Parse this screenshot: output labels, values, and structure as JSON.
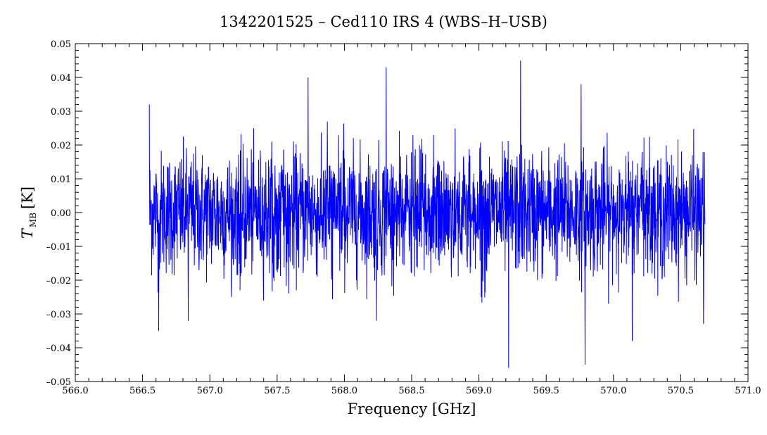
{
  "chart_data": {
    "type": "line",
    "title": "1342201525 – Ced110 IRS 4 (WBS–H–USB)",
    "xlabel": "Frequency [GHz]",
    "ylabel": {
      "symbol": "T",
      "subscript": "MB",
      "unit": "[K]"
    },
    "xlim": [
      566.0,
      571.0
    ],
    "ylim": [
      -0.05,
      0.05
    ],
    "x_ticks": [
      "566.0",
      "566.5",
      "567.0",
      "567.5",
      "568.0",
      "568.5",
      "569.0",
      "569.5",
      "570.0",
      "570.5",
      "571.0"
    ],
    "y_ticks": [
      "0.05",
      "0.04",
      "0.03",
      "0.02",
      "0.01",
      "0.00",
      "–0.01",
      "–0.02",
      "–0.03",
      "–0.04",
      "–0.05"
    ],
    "series": [
      {
        "color": "#0000ff",
        "x_range": [
          566.55,
          570.68
        ],
        "noise_rms": 0.009,
        "mean": 0.0,
        "spikes": [
          {
            "x": 566.55,
            "y": 0.032
          },
          {
            "x": 566.62,
            "y": -0.035
          },
          {
            "x": 566.84,
            "y": -0.032
          },
          {
            "x": 567.73,
            "y": 0.04
          },
          {
            "x": 568.24,
            "y": -0.032
          },
          {
            "x": 568.31,
            "y": 0.043
          },
          {
            "x": 569.22,
            "y": -0.046
          },
          {
            "x": 569.31,
            "y": 0.045
          },
          {
            "x": 569.76,
            "y": 0.038
          },
          {
            "x": 569.79,
            "y": -0.045
          },
          {
            "x": 570.14,
            "y": -0.038
          },
          {
            "x": 570.67,
            "y": -0.033
          }
        ]
      }
    ],
    "grid": false
  }
}
